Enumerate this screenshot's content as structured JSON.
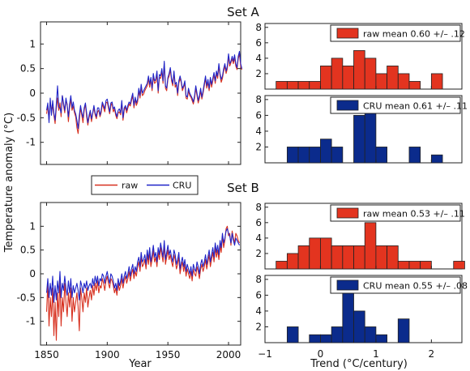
{
  "chart_data": {
    "type": "line+bar",
    "set_titles": [
      "Set A",
      "Set B"
    ],
    "ylabel": "Temperature anomaly (°C)",
    "xlabel_left": "Year",
    "xlabel_right": "Trend (°C/century)",
    "legend": {
      "raw": "raw",
      "cru": "CRU"
    },
    "colors": {
      "raw": "#d7301f",
      "cru": "#1f24c8",
      "hist_raw": "#e3341f",
      "hist_cru": "#0b2b8c"
    },
    "line_panels": {
      "xlim": [
        1845,
        2010
      ],
      "ylim_A": [
        -1.45,
        1.45
      ],
      "ylim_B": [
        -1.5,
        1.5
      ],
      "xticks": [
        1850,
        1900,
        1950,
        2000
      ],
      "yticks": [
        -1,
        -0.5,
        0,
        0.5,
        1
      ],
      "ytick_labels": [
        "-1",
        "-0.5",
        "0",
        "0.5",
        "1"
      ],
      "A_raw": {
        "start": 1850,
        "values": [
          -0.42,
          -0.25,
          -0.55,
          -0.18,
          -0.32,
          -0.28,
          -0.45,
          -0.62,
          -0.3,
          -0.1,
          -0.35,
          -0.2,
          -0.48,
          -0.05,
          -0.25,
          -0.4,
          -0.15,
          -0.22,
          -0.58,
          -0.3,
          -0.12,
          -0.35,
          -0.26,
          -0.4,
          -0.48,
          -0.7,
          -0.82,
          -0.55,
          -0.3,
          -0.45,
          -0.6,
          -0.35,
          -0.22,
          -0.48,
          -0.65,
          -0.5,
          -0.4,
          -0.58,
          -0.42,
          -0.3,
          -0.44,
          -0.52,
          -0.38,
          -0.35,
          -0.48,
          -0.4,
          -0.22,
          -0.3,
          -0.38,
          -0.2,
          -0.18,
          -0.3,
          -0.42,
          -0.26,
          -0.2,
          -0.38,
          -0.32,
          -0.45,
          -0.52,
          -0.4,
          -0.38,
          -0.44,
          -0.2,
          -0.55,
          -0.35,
          -0.28,
          -0.4,
          -0.3,
          -0.22,
          -0.26,
          -0.15,
          -0.05,
          -0.3,
          -0.12,
          -0.25,
          -0.18,
          0.05,
          -0.1,
          0.12,
          -0.05,
          -0.02,
          0.05,
          0.1,
          0.15,
          0.3,
          0.12,
          0.28,
          0.05,
          0.35,
          0.2,
          0.22,
          0.4,
          0.0,
          0.32,
          0.3,
          0.45,
          0.2,
          0.6,
          0.1,
          0.05,
          0.28,
          0.35,
          0.48,
          0.25,
          0.15,
          0.42,
          0.12,
          0.18,
          -0.05,
          0.2,
          0.3,
          0.22,
          0.05,
          0.12,
          0.2,
          -0.1,
          -0.12,
          0.05,
          -0.05,
          -0.08,
          -0.15,
          -0.22,
          -0.1,
          0.1,
          -0.05,
          -0.2,
          -0.1,
          0.05,
          -0.12,
          0.0,
          0.15,
          0.3,
          0.1,
          0.22,
          0.05,
          0.28,
          0.12,
          0.25,
          0.38,
          0.2,
          0.4,
          0.3,
          0.55,
          0.35,
          0.22,
          0.3,
          0.45,
          0.55,
          0.4,
          0.5,
          0.75,
          0.55,
          0.62,
          0.7,
          0.6,
          0.72,
          0.55,
          0.48,
          0.7,
          0.8,
          0.55,
          0.48
        ]
      },
      "A_cru": {
        "start": 1850,
        "values": [
          -0.35,
          -0.2,
          -0.6,
          -0.1,
          -0.45,
          -0.15,
          -0.4,
          -0.55,
          -0.22,
          0.15,
          -0.28,
          -0.3,
          -0.4,
          -0.05,
          -0.2,
          -0.35,
          -0.1,
          -0.25,
          -0.48,
          -0.22,
          -0.05,
          -0.3,
          -0.18,
          -0.35,
          -0.42,
          -0.55,
          -0.72,
          -0.45,
          -0.25,
          -0.4,
          -0.5,
          -0.3,
          -0.2,
          -0.4,
          -0.6,
          -0.45,
          -0.35,
          -0.52,
          -0.4,
          -0.25,
          -0.4,
          -0.48,
          -0.3,
          -0.3,
          -0.45,
          -0.35,
          -0.18,
          -0.25,
          -0.32,
          -0.15,
          -0.12,
          -0.25,
          -0.38,
          -0.2,
          -0.18,
          -0.32,
          -0.28,
          -0.4,
          -0.48,
          -0.35,
          -0.32,
          -0.4,
          -0.15,
          -0.5,
          -0.3,
          -0.25,
          -0.35,
          -0.25,
          -0.18,
          -0.22,
          -0.1,
          0.0,
          -0.25,
          -0.08,
          -0.2,
          -0.12,
          0.1,
          -0.05,
          0.18,
          0.0,
          0.05,
          0.1,
          0.15,
          0.2,
          0.35,
          0.18,
          0.32,
          0.1,
          0.4,
          0.25,
          0.28,
          0.45,
          0.05,
          0.38,
          0.35,
          0.5,
          0.25,
          0.65,
          0.15,
          0.1,
          0.32,
          0.4,
          0.52,
          0.3,
          0.2,
          0.45,
          0.18,
          0.22,
          0.0,
          0.25,
          0.35,
          0.25,
          0.1,
          0.15,
          0.25,
          -0.05,
          -0.08,
          0.1,
          0.0,
          -0.05,
          -0.1,
          -0.18,
          -0.05,
          0.15,
          0.0,
          -0.15,
          -0.05,
          0.1,
          -0.08,
          0.05,
          0.2,
          0.35,
          0.15,
          0.28,
          0.1,
          0.32,
          0.18,
          0.3,
          0.42,
          0.25,
          0.45,
          0.35,
          0.6,
          0.4,
          0.28,
          0.35,
          0.5,
          0.6,
          0.45,
          0.55,
          0.8,
          0.6,
          0.65,
          0.75,
          0.65,
          0.78,
          0.6,
          0.52,
          0.75,
          0.85,
          0.6,
          0.5
        ]
      },
      "B_raw": {
        "start": 1850,
        "values": [
          -0.8,
          -0.2,
          -1.1,
          -0.5,
          -0.9,
          -0.3,
          -1.3,
          -0.6,
          -1.4,
          -0.4,
          -0.9,
          -0.1,
          -1.1,
          -0.5,
          -0.8,
          -0.2,
          -0.6,
          -0.9,
          -0.4,
          -0.7,
          -0.3,
          -1.0,
          -0.5,
          -0.8,
          -0.6,
          -0.4,
          -0.7,
          -1.2,
          -0.3,
          -0.5,
          -0.8,
          -0.4,
          -0.6,
          -0.3,
          -0.7,
          -0.5,
          -0.35,
          -0.55,
          -0.25,
          -0.45,
          -0.2,
          -0.35,
          -0.15,
          -0.4,
          -0.25,
          -0.3,
          -0.1,
          -0.2,
          -0.35,
          -0.15,
          -0.05,
          -0.2,
          -0.3,
          -0.1,
          -0.15,
          -0.25,
          -0.4,
          -0.3,
          -0.45,
          -0.2,
          -0.35,
          -0.25,
          -0.1,
          -0.3,
          -0.15,
          -0.05,
          -0.2,
          -0.1,
          0.05,
          -0.15,
          0.0,
          0.1,
          -0.1,
          0.05,
          -0.05,
          0.15,
          0.25,
          0.05,
          0.35,
          0.15,
          0.2,
          0.3,
          0.1,
          0.4,
          0.2,
          0.45,
          0.15,
          0.3,
          0.5,
          0.25,
          0.35,
          0.15,
          0.45,
          0.3,
          0.55,
          0.4,
          0.25,
          0.6,
          0.2,
          0.35,
          0.5,
          0.3,
          0.4,
          0.25,
          0.15,
          0.4,
          0.3,
          0.1,
          0.2,
          0.35,
          0.0,
          0.15,
          0.25,
          0.05,
          0.2,
          -0.05,
          0.1,
          0.0,
          -0.1,
          0.05,
          -0.15,
          0.1,
          0.0,
          -0.05,
          0.15,
          0.05,
          -0.1,
          0.1,
          0.2,
          0.05,
          0.15,
          0.3,
          0.1,
          0.25,
          0.4,
          0.15,
          0.3,
          0.45,
          0.25,
          0.55,
          0.35,
          0.5,
          0.3,
          0.6,
          0.45,
          0.8,
          0.55,
          0.7,
          0.95,
          1.0,
          0.8,
          0.85,
          0.6,
          0.9,
          0.75,
          0.65,
          0.85,
          0.8,
          0.7,
          0.65
        ]
      },
      "B_cru": {
        "start": 1850,
        "values": [
          -0.4,
          -0.1,
          -0.5,
          -0.2,
          -0.45,
          -0.05,
          -0.6,
          -0.25,
          -0.55,
          -0.15,
          -0.4,
          0.05,
          -0.5,
          -0.2,
          -0.35,
          -0.05,
          -0.3,
          -0.45,
          -0.15,
          -0.4,
          -0.1,
          -0.5,
          -0.25,
          -0.4,
          -0.3,
          -0.2,
          -0.35,
          -0.55,
          -0.15,
          -0.25,
          -0.4,
          -0.2,
          -0.3,
          -0.15,
          -0.35,
          -0.25,
          -0.2,
          -0.3,
          -0.1,
          -0.25,
          -0.05,
          -0.2,
          -0.05,
          -0.25,
          -0.1,
          -0.15,
          0.0,
          -0.05,
          -0.2,
          -0.05,
          0.05,
          -0.1,
          -0.2,
          0.0,
          -0.05,
          -0.15,
          -0.3,
          -0.2,
          -0.35,
          -0.1,
          -0.25,
          -0.15,
          0.0,
          -0.2,
          -0.05,
          0.05,
          -0.1,
          0.0,
          0.15,
          -0.05,
          0.1,
          0.2,
          0.0,
          0.15,
          0.05,
          0.25,
          0.35,
          0.15,
          0.45,
          0.25,
          0.3,
          0.4,
          0.2,
          0.5,
          0.3,
          0.55,
          0.25,
          0.4,
          0.6,
          0.35,
          0.45,
          0.25,
          0.55,
          0.4,
          0.65,
          0.5,
          0.35,
          0.7,
          0.3,
          0.45,
          0.6,
          0.4,
          0.5,
          0.35,
          0.25,
          0.5,
          0.4,
          0.2,
          0.3,
          0.45,
          0.1,
          0.25,
          0.35,
          0.15,
          0.3,
          0.05,
          0.2,
          0.1,
          0.0,
          0.15,
          -0.05,
          0.2,
          0.1,
          0.05,
          0.25,
          0.15,
          0.0,
          0.2,
          0.3,
          0.15,
          0.25,
          0.4,
          0.2,
          0.35,
          0.5,
          0.25,
          0.4,
          0.55,
          0.35,
          0.65,
          0.45,
          0.6,
          0.4,
          0.7,
          0.55,
          0.85,
          0.65,
          0.75,
          0.9,
          0.95,
          0.85,
          0.8,
          0.65,
          0.85,
          0.7,
          0.6,
          0.75,
          0.7,
          0.65,
          0.6
        ]
      }
    },
    "histograms": {
      "xlim": [
        -1,
        2.55
      ],
      "ylim": [
        0,
        8.5
      ],
      "xticks": [
        -1,
        0,
        1,
        2
      ],
      "yticks": [
        2,
        4,
        6,
        8
      ],
      "bin_width": 0.2,
      "A_raw": {
        "legend": "raw mean 0.60 +/– .12",
        "bins": [
          [
            -0.8,
            1
          ],
          [
            -0.6,
            1
          ],
          [
            -0.4,
            1
          ],
          [
            -0.2,
            1
          ],
          [
            0.0,
            3
          ],
          [
            0.2,
            4
          ],
          [
            0.4,
            3
          ],
          [
            0.6,
            5
          ],
          [
            0.8,
            4
          ],
          [
            1.0,
            2
          ],
          [
            1.2,
            3
          ],
          [
            1.4,
            2
          ],
          [
            1.6,
            1
          ],
          [
            2.0,
            2
          ]
        ]
      },
      "A_cru": {
        "legend": "CRU mean 0.61 +/– .11",
        "bins": [
          [
            -0.6,
            2
          ],
          [
            -0.4,
            2
          ],
          [
            -0.2,
            2
          ],
          [
            0.0,
            3
          ],
          [
            0.2,
            2
          ],
          [
            0.6,
            6
          ],
          [
            0.8,
            7
          ],
          [
            1.0,
            2
          ],
          [
            1.6,
            2
          ],
          [
            2.0,
            1
          ]
        ]
      },
      "B_raw": {
        "legend": "raw mean 0.53 +/– .11",
        "bins": [
          [
            -0.8,
            1
          ],
          [
            -0.6,
            2
          ],
          [
            -0.4,
            3
          ],
          [
            -0.2,
            4
          ],
          [
            0.0,
            4
          ],
          [
            0.2,
            3
          ],
          [
            0.4,
            3
          ],
          [
            0.6,
            3
          ],
          [
            0.8,
            6
          ],
          [
            1.0,
            3
          ],
          [
            1.2,
            3
          ],
          [
            1.4,
            1
          ],
          [
            1.6,
            1
          ],
          [
            1.8,
            1
          ],
          [
            2.4,
            1
          ]
        ]
      },
      "B_cru": {
        "legend": "CRU mean 0.55 +/– .08",
        "bins": [
          [
            -0.6,
            2
          ],
          [
            -0.2,
            1
          ],
          [
            0.0,
            1
          ],
          [
            0.2,
            2
          ],
          [
            0.4,
            8
          ],
          [
            0.6,
            4
          ],
          [
            0.8,
            2
          ],
          [
            1.0,
            1
          ],
          [
            1.4,
            3
          ]
        ]
      }
    }
  }
}
